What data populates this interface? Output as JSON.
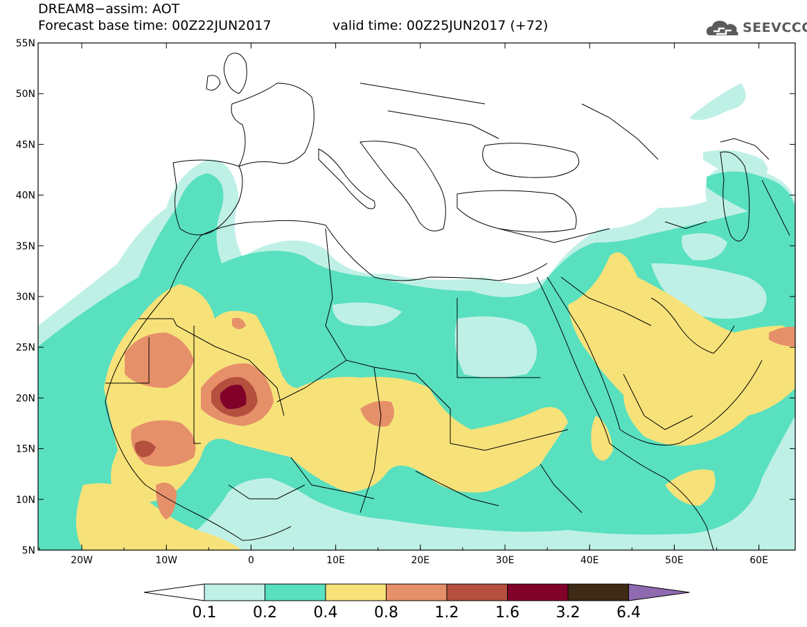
{
  "header": {
    "title": "DREAM8−assim: AOT",
    "base_time": "Forecast base time: 00Z22JUN2017",
    "valid_time": "valid time: 00Z25JUN2017 (+72)"
  },
  "logo": {
    "text": "SEEVCCC",
    "icon": "cloud-logo-icon"
  },
  "map": {
    "lat_labels": [
      "55N",
      "50N",
      "45N",
      "40N",
      "35N",
      "30N",
      "25N",
      "20N",
      "15N",
      "10N",
      "5N"
    ],
    "lon_labels": [
      "20W",
      "10W",
      "0",
      "10E",
      "20E",
      "30E",
      "40E",
      "50E",
      "60E"
    ]
  },
  "colorbar": {
    "labels": [
      "0.1",
      "0.2",
      "0.4",
      "0.8",
      "1.2",
      "1.6",
      "3.2",
      "6.4"
    ],
    "colors": [
      "#ffffff",
      "#bff0e6",
      "#59e0bf",
      "#f7e27a",
      "#e6906a",
      "#b5503f",
      "#80002a",
      "#3f2a15",
      "#8f6ab0"
    ]
  },
  "palette": {
    "c1": "#bff0e6",
    "c2": "#59e0bf",
    "c3": "#f7e27a",
    "c4": "#e6906a",
    "c5": "#b5503f",
    "c6": "#80002a"
  }
}
